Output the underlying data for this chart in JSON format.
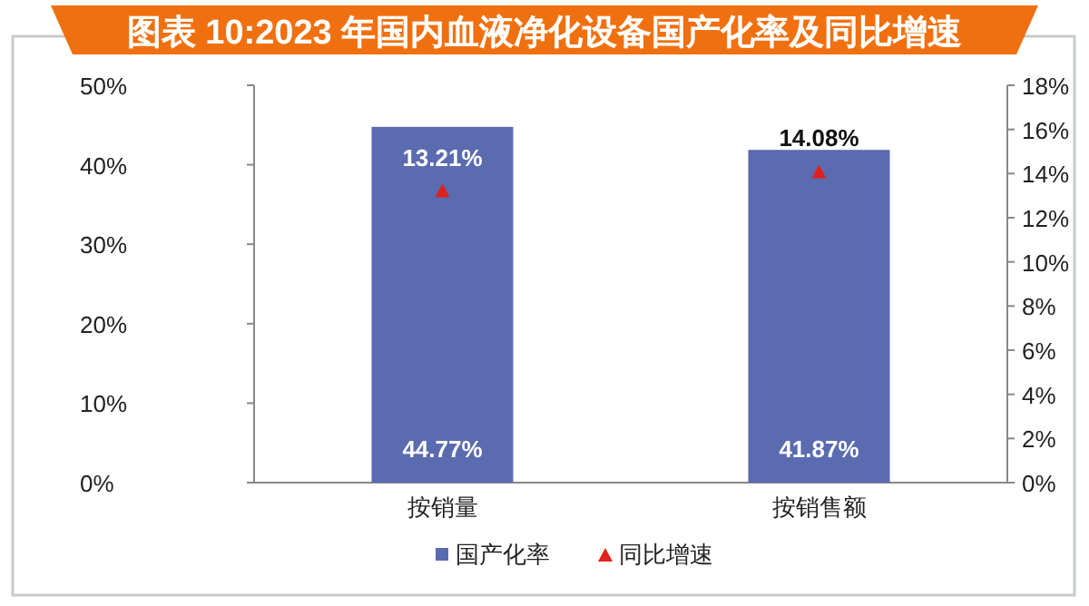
{
  "chart_data": {
    "type": "bar",
    "title": "图表 10:2023 年国内血液净化设备国产化率及同比增速",
    "categories": [
      "按销量",
      "按销售额"
    ],
    "series": [
      {
        "name": "国产化率",
        "color": "#5b6bb0",
        "values": [
          44.77,
          41.87
        ],
        "value_labels": [
          "44.77%",
          "41.87%"
        ]
      },
      {
        "name": "同比增速",
        "type": "scatter",
        "axis": "y2",
        "color": "#e0201b",
        "marker": "triangle",
        "values": [
          13.21,
          14.08
        ],
        "value_labels": [
          "13.21%",
          "14.08%"
        ]
      }
    ],
    "ylim": [
      0,
      50
    ],
    "yticks": [
      {
        "value": 0,
        "label": "0%"
      },
      {
        "value": 10,
        "label": "10%"
      },
      {
        "value": 20,
        "label": "20%"
      },
      {
        "value": 30,
        "label": "30%"
      },
      {
        "value": 40,
        "label": "40%"
      },
      {
        "value": 50,
        "label": "50%"
      }
    ],
    "y2lim": [
      0,
      18
    ],
    "y2ticks": [
      {
        "value": 0,
        "label": "0%"
      },
      {
        "value": 2,
        "label": "2%"
      },
      {
        "value": 4,
        "label": "4%"
      },
      {
        "value": 6,
        "label": "6%"
      },
      {
        "value": 8,
        "label": "8%"
      },
      {
        "value": 10,
        "label": "10%"
      },
      {
        "value": 12,
        "label": "12%"
      },
      {
        "value": 14,
        "label": "14%"
      },
      {
        "value": 16,
        "label": "16%"
      },
      {
        "value": 18,
        "label": "18%"
      }
    ],
    "grid": false,
    "legend": "bottom"
  }
}
